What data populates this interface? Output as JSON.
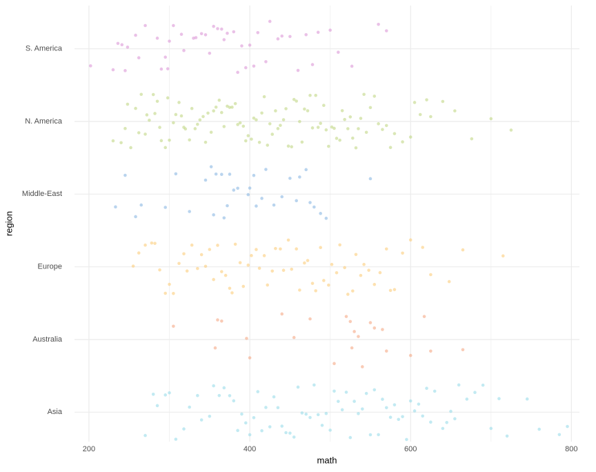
{
  "chart_data": {
    "type": "strip",
    "x_label": "math",
    "y_label": "region",
    "categories": [
      "S. America",
      "N. America",
      "Middle-East",
      "Europe",
      "Australia",
      "Asia"
    ],
    "colors": [
      "#d98ed4",
      "#bcd47a",
      "#7fb0e0",
      "#fcc870",
      "#f4a07a",
      "#8fd8e8"
    ],
    "values": [
      [
        202,
        230,
        236,
        241,
        245,
        248,
        258,
        262,
        270,
        285,
        290,
        295,
        298,
        300,
        305,
        315,
        318,
        330,
        333,
        340,
        345,
        350,
        355,
        360,
        365,
        368,
        372,
        380,
        385,
        390,
        395,
        400,
        405,
        410,
        420,
        425,
        435,
        440,
        450,
        460,
        470,
        478,
        485,
        500,
        510,
        527,
        560,
        570
      ],
      [
        230,
        240,
        245,
        248,
        252,
        258,
        262,
        265,
        270,
        272,
        275,
        280,
        282,
        285,
        288,
        290,
        295,
        298,
        300,
        305,
        308,
        312,
        315,
        318,
        320,
        325,
        328,
        332,
        335,
        338,
        342,
        345,
        348,
        352,
        355,
        358,
        362,
        365,
        368,
        372,
        375,
        378,
        382,
        385,
        388,
        392,
        395,
        398,
        402,
        405,
        408,
        412,
        415,
        418,
        422,
        425,
        428,
        432,
        435,
        438,
        442,
        445,
        448,
        452,
        455,
        458,
        462,
        465,
        468,
        472,
        475,
        478,
        482,
        485,
        488,
        492,
        495,
        498,
        502,
        505,
        508,
        512,
        515,
        518,
        522,
        525,
        528,
        532,
        535,
        538,
        542,
        545,
        550,
        555,
        560,
        565,
        570,
        575,
        580,
        590,
        600,
        605,
        612,
        620,
        625,
        640,
        655,
        676,
        700,
        725
      ],
      [
        233,
        245,
        258,
        265,
        295,
        308,
        325,
        345,
        352,
        355,
        358,
        365,
        368,
        372,
        375,
        380,
        385,
        398,
        400,
        405,
        408,
        415,
        420,
        430,
        440,
        450,
        458,
        462,
        470,
        475,
        480,
        488,
        495,
        550
      ],
      [
        255,
        262,
        270,
        278,
        282,
        288,
        295,
        300,
        305,
        312,
        318,
        322,
        328,
        335,
        340,
        345,
        350,
        355,
        360,
        365,
        370,
        375,
        378,
        382,
        388,
        392,
        398,
        402,
        408,
        412,
        418,
        422,
        428,
        432,
        438,
        442,
        448,
        452,
        458,
        462,
        468,
        472,
        478,
        482,
        488,
        492,
        498,
        502,
        508,
        512,
        518,
        522,
        528,
        532,
        538,
        542,
        548,
        555,
        562,
        570,
        575,
        580,
        590,
        600,
        615,
        625,
        648,
        665,
        715
      ],
      [
        305,
        357,
        360,
        365,
        396,
        400,
        440,
        455,
        475,
        505,
        520,
        525,
        527,
        530,
        535,
        540,
        550,
        555,
        565,
        570,
        600,
        617,
        625,
        665
      ],
      [
        270,
        280,
        285,
        295,
        300,
        308,
        318,
        325,
        335,
        340,
        350,
        355,
        362,
        368,
        375,
        380,
        385,
        390,
        395,
        400,
        405,
        410,
        415,
        420,
        425,
        430,
        435,
        440,
        445,
        450,
        455,
        460,
        465,
        470,
        475,
        480,
        485,
        490,
        495,
        500,
        505,
        510,
        515,
        520,
        525,
        530,
        535,
        540,
        545,
        550,
        555,
        560,
        565,
        570,
        575,
        580,
        585,
        590,
        595,
        600,
        605,
        610,
        615,
        620,
        625,
        630,
        640,
        645,
        650,
        655,
        660,
        670,
        680,
        690,
        700,
        710,
        720,
        745,
        760,
        785,
        795
      ]
    ],
    "xlim": [
      182,
      810
    ],
    "xticks": [
      200,
      400,
      600,
      800
    ],
    "x_minor_grid": [
      300,
      500,
      700
    ],
    "grid": true,
    "point_opacity": 0.55
  }
}
